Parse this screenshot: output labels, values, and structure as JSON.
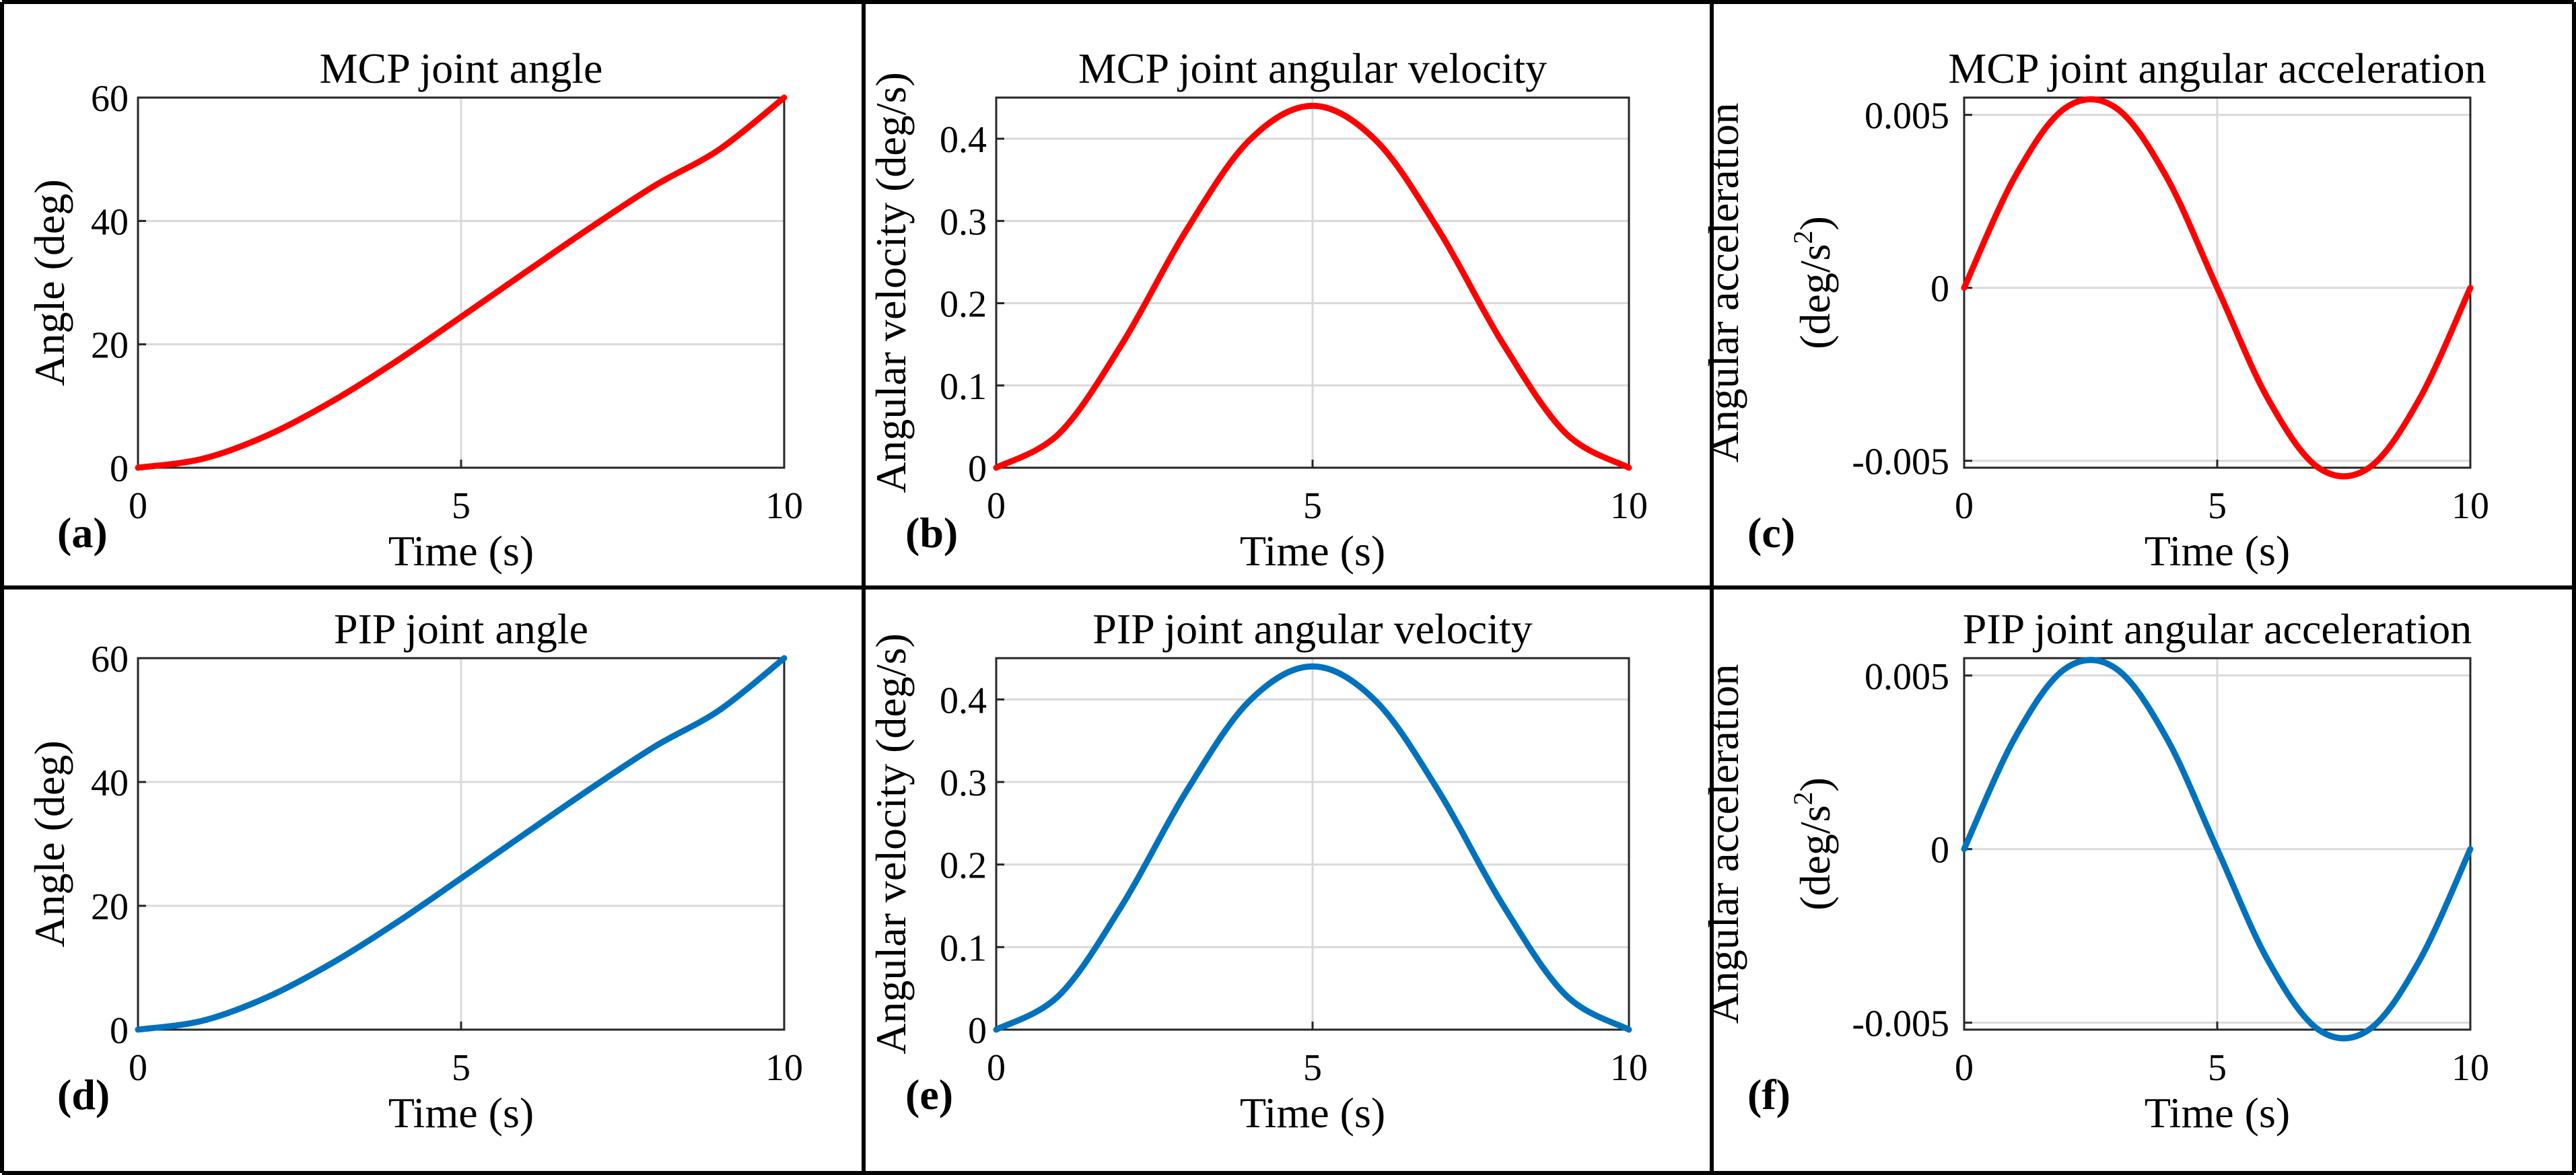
{
  "chart_data": [
    {
      "panel": "(a)",
      "type": "line",
      "title": "MCP joint angle",
      "xlabel": "Time (s)",
      "ylabel": "Angle (deg)",
      "xlim": [
        0,
        10
      ],
      "ylim": [
        0,
        60
      ],
      "xticks": [
        0,
        5,
        10
      ],
      "xtick_labels": [
        "0",
        "5",
        "10"
      ],
      "yticks": [
        0,
        20,
        40,
        60
      ],
      "ytick_labels": [
        "0",
        "20",
        "40",
        "60"
      ],
      "grid": true,
      "color": "#ff0000",
      "x": [
        0,
        1,
        2,
        3,
        4,
        5,
        6,
        7,
        8,
        9,
        10
      ],
      "values": [
        0,
        1.44,
        5.24,
        10.73,
        17.28,
        24.45,
        31.72,
        38.9,
        45.74,
        51.62,
        60.0
      ]
    },
    {
      "panel": "(b)",
      "type": "line",
      "title": "MCP joint angular velocity",
      "xlabel": "Time (s)",
      "ylabel": "Angular velocity (deg/s)",
      "xlim": [
        0,
        10
      ],
      "ylim": [
        0,
        0.45
      ],
      "xticks": [
        0,
        5,
        10
      ],
      "xtick_labels": [
        "0",
        "5",
        "10"
      ],
      "yticks": [
        0,
        0.1,
        0.2,
        0.3,
        0.4
      ],
      "ytick_labels": [
        "0",
        "0.1",
        "0.2",
        "0.3",
        "0.4"
      ],
      "grid": true,
      "color": "#ff0000",
      "x": [
        0,
        1,
        2,
        3,
        4,
        5,
        6,
        7,
        8,
        9,
        10
      ],
      "values": [
        0,
        0.042,
        0.152,
        0.288,
        0.398,
        0.44,
        0.398,
        0.288,
        0.152,
        0.042,
        0
      ]
    },
    {
      "panel": "(c)",
      "type": "line",
      "title": "MCP joint angular acceleration",
      "xlabel": "Time (s)",
      "ylabel": "Angular acceleration",
      "ylabel_line2_prefix": "(deg/s",
      "ylabel_line2_sup": "2",
      "ylabel_line2_suffix": ")",
      "xlim": [
        0,
        10
      ],
      "ylim": [
        -0.0052,
        0.0055
      ],
      "xticks": [
        0,
        5,
        10
      ],
      "xtick_labels": [
        "0",
        "5",
        "10"
      ],
      "yticks": [
        -0.005,
        0,
        0.005
      ],
      "ytick_labels": [
        "-0.005",
        "0",
        "0.005"
      ],
      "grid": true,
      "color": "#ff0000",
      "x": [
        0,
        1,
        2,
        3,
        4,
        5,
        6,
        7,
        8,
        9,
        10
      ],
      "values": [
        0,
        0.0032,
        0.0052,
        0.0052,
        0.0032,
        0,
        -0.0032,
        -0.0052,
        -0.0052,
        -0.0032,
        0
      ]
    },
    {
      "panel": "(d)",
      "type": "line",
      "title": "PIP joint angle",
      "xlabel": "Time (s)",
      "ylabel": "Angle (deg)",
      "xlim": [
        0,
        10
      ],
      "ylim": [
        0,
        60
      ],
      "xticks": [
        0,
        5,
        10
      ],
      "xtick_labels": [
        "0",
        "5",
        "10"
      ],
      "yticks": [
        0,
        20,
        40,
        60
      ],
      "ytick_labels": [
        "0",
        "20",
        "40",
        "60"
      ],
      "grid": true,
      "color": "#0072bd",
      "x": [
        0,
        1,
        2,
        3,
        4,
        5,
        6,
        7,
        8,
        9,
        10
      ],
      "values": [
        0,
        1.44,
        5.24,
        10.73,
        17.28,
        24.45,
        31.72,
        38.9,
        45.74,
        51.62,
        60.0
      ]
    },
    {
      "panel": "(e)",
      "type": "line",
      "title": "PIP joint angular velocity",
      "xlabel": "Time (s)",
      "ylabel": "Angular velocity (deg/s)",
      "xlim": [
        0,
        10
      ],
      "ylim": [
        0,
        0.45
      ],
      "xticks": [
        0,
        5,
        10
      ],
      "xtick_labels": [
        "0",
        "5",
        "10"
      ],
      "yticks": [
        0,
        0.1,
        0.2,
        0.3,
        0.4
      ],
      "ytick_labels": [
        "0",
        "0.1",
        "0.2",
        "0.3",
        "0.4"
      ],
      "grid": true,
      "color": "#0072bd",
      "x": [
        0,
        1,
        2,
        3,
        4,
        5,
        6,
        7,
        8,
        9,
        10
      ],
      "values": [
        0,
        0.042,
        0.152,
        0.288,
        0.398,
        0.44,
        0.398,
        0.288,
        0.152,
        0.042,
        0
      ]
    },
    {
      "panel": "(f)",
      "type": "line",
      "title": "PIP joint angular acceleration",
      "xlabel": "Time (s)",
      "ylabel": "Angular acceleration",
      "ylabel_line2_prefix": "(deg/s",
      "ylabel_line2_sup": "2",
      "ylabel_line2_suffix": ")",
      "xlim": [
        0,
        10
      ],
      "ylim": [
        -0.0052,
        0.0055
      ],
      "xticks": [
        0,
        5,
        10
      ],
      "xtick_labels": [
        "0",
        "5",
        "10"
      ],
      "yticks": [
        -0.005,
        0,
        0.005
      ],
      "ytick_labels": [
        "-0.005",
        "0",
        "0.005"
      ],
      "grid": true,
      "color": "#0072bd",
      "x": [
        0,
        1,
        2,
        3,
        4,
        5,
        6,
        7,
        8,
        9,
        10
      ],
      "values": [
        0,
        0.0032,
        0.0052,
        0.0052,
        0.0032,
        0,
        -0.0032,
        -0.0052,
        -0.0052,
        -0.0032,
        0
      ]
    }
  ]
}
